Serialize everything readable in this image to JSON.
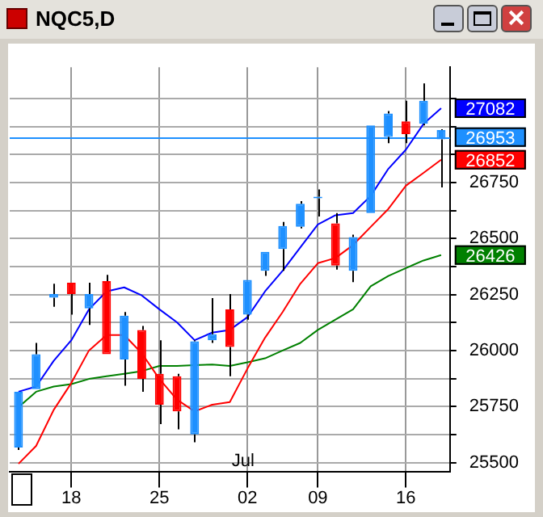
{
  "chart_data": {
    "type": "candlestick",
    "title": "NQC5,D",
    "categories": [
      null,
      null,
      null,
      "18",
      null,
      null,
      null,
      null,
      "25",
      null,
      null,
      null,
      null,
      "02",
      null,
      null,
      null,
      "09",
      null,
      null,
      null,
      null,
      "16",
      null,
      null
    ],
    "ohlc": [
      [
        25567,
        25816,
        25556,
        25816
      ],
      [
        25827,
        26034,
        25827,
        25983
      ],
      [
        26236,
        26298,
        26195,
        26252
      ],
      [
        26303,
        26303,
        26160,
        26252
      ],
      [
        26188,
        26303,
        26114,
        26252
      ],
      [
        26310,
        26338,
        25983,
        25983
      ],
      [
        25960,
        26172,
        25843,
        26156
      ],
      [
        26092,
        26110,
        25816,
        25873
      ],
      [
        25896,
        26046,
        25671,
        25758
      ],
      [
        25885,
        25896,
        25648,
        25728
      ],
      [
        25625,
        26046,
        25590,
        26041
      ],
      [
        26046,
        26234,
        26034,
        26073
      ],
      [
        26184,
        26252,
        25885,
        26016
      ],
      [
        26160,
        26315,
        26138,
        26315
      ],
      [
        26356,
        26441,
        26333,
        26441
      ],
      [
        26453,
        26574,
        26356,
        26556
      ],
      [
        26552,
        26667,
        26545,
        26655
      ],
      [
        26680,
        26719,
        26598,
        26687
      ],
      [
        26568,
        26614,
        26361,
        26379
      ],
      [
        26356,
        26517,
        26305,
        26506
      ],
      [
        26614,
        27005,
        26614,
        27005
      ],
      [
        26954,
        27069,
        26926,
        27058
      ],
      [
        27023,
        27115,
        26926,
        26966
      ],
      [
        27012,
        27193,
        27005,
        27115
      ],
      [
        26943,
        26988,
        26728,
        26984
      ]
    ],
    "colors": [
      "#1e90ff",
      "#1e90ff",
      "#1e90ff",
      "#ff0000",
      "#1e90ff",
      "#ff0000",
      "#1e90ff",
      "#ff0000",
      "#ff0000",
      "#ff0000",
      "#1e90ff",
      "#1e90ff",
      "#ff0000",
      "#1e90ff",
      "#1e90ff",
      "#1e90ff",
      "#1e90ff",
      "#1e90ff",
      "#ff0000",
      "#1e90ff",
      "#1e90ff",
      "#1e90ff",
      "#ff0000",
      "#1e90ff",
      "#1e90ff"
    ],
    "series": [
      {
        "type": "line",
        "color": "#0000ff",
        "values": [
          25816,
          25839,
          25954,
          26046,
          26184,
          26264,
          26282,
          26246,
          26184,
          26126,
          26046,
          26080,
          26092,
          26149,
          26264,
          26356,
          26460,
          26563,
          26604,
          26614,
          26690,
          26811,
          26897,
          27012,
          27082
        ],
        "value_labels": [
          null,
          null,
          null,
          null,
          null,
          null,
          null,
          null,
          null,
          null,
          null,
          null,
          null,
          null,
          null,
          null,
          null,
          null,
          null,
          null,
          null,
          null,
          null,
          null,
          "27082"
        ]
      },
      {
        "type": "line",
        "color": "#ff0000",
        "values": [
          25494,
          25574,
          25735,
          25855,
          26000,
          26069,
          26069,
          25988,
          25873,
          25781,
          25728,
          25758,
          25770,
          25919,
          26057,
          26172,
          26298,
          26390,
          26413,
          26471,
          26552,
          26632,
          26736,
          26793,
          26852
        ],
        "value_labels": [
          null,
          null,
          null,
          null,
          null,
          null,
          null,
          null,
          null,
          null,
          null,
          null,
          null,
          null,
          null,
          null,
          null,
          null,
          null,
          null,
          null,
          null,
          null,
          null,
          "26852"
        ]
      },
      {
        "type": "line",
        "color": "#008000",
        "values": [
          25747,
          25816,
          25839,
          25850,
          25873,
          25885,
          25896,
          25908,
          25931,
          25931,
          25935,
          25937,
          25931,
          25947,
          25965,
          26000,
          26034,
          26092,
          26138,
          26184,
          26287,
          26333,
          26368,
          26402,
          26426
        ],
        "value_labels": [
          null,
          null,
          null,
          null,
          null,
          null,
          null,
          null,
          null,
          null,
          null,
          null,
          null,
          null,
          null,
          null,
          null,
          null,
          null,
          null,
          null,
          null,
          null,
          null,
          "26426"
        ]
      }
    ],
    "ylim": [
      25460,
      27265
    ],
    "yticks": [
      25500,
      {
        "value": 25625,
        "label": null
      },
      25750,
      {
        "value": 25875,
        "label": null
      },
      26000,
      {
        "value": 26125,
        "label": null
      },
      26250,
      {
        "value": 26375,
        "label": null
      },
      26500,
      {
        "value": 26625,
        "label": null
      },
      26750,
      {
        "value": 26875,
        "label": null
      },
      {
        "value": 27000,
        "label": null
      },
      {
        "value": 27125,
        "label": null
      }
    ],
    "grid": true,
    "marker": "none",
    "ref_lines": [
      {
        "axis": "y",
        "value": 26953,
        "label": "26953",
        "color": "#1e90ff"
      }
    ],
    "annotations": [
      "Jul"
    ]
  }
}
